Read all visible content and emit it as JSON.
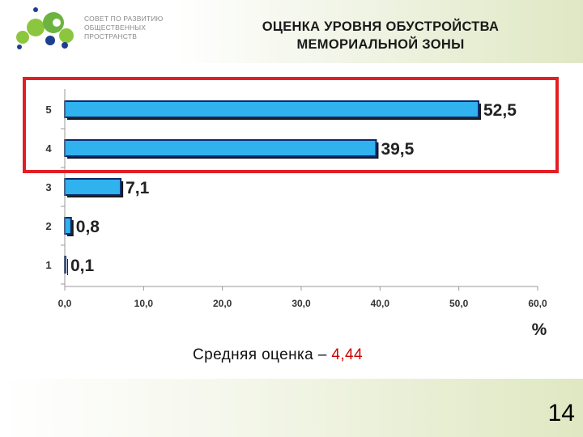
{
  "logo": {
    "text_lines": [
      "СОВЕТ ПО РАЗВИТИЮ",
      "ОБЩЕСТВЕННЫХ",
      "ПРОСТРАНСТВ"
    ]
  },
  "slide": {
    "title_line1": "ОЦЕНКА УРОВНЯ ОБУСТРОЙСТВА",
    "title_line2": "МЕМОРИАЛЬНОЙ ЗОНЫ",
    "average_label": "Средняя оценка – ",
    "average_value": "4,44",
    "page_number": "14"
  },
  "colors": {
    "bar_fill": "#2fb2ee",
    "bar_stroke": "#0a2a6e",
    "highlight_box": "#e31e24",
    "average_value": "#cc0000"
  },
  "chart_data": {
    "type": "bar",
    "orientation": "horizontal",
    "categories": [
      "1",
      "2",
      "3",
      "4",
      "5"
    ],
    "values": [
      0.1,
      0.8,
      7.1,
      39.5,
      52.5
    ],
    "value_labels": [
      "0,1",
      "0,8",
      "7,1",
      "39,5",
      "52,5"
    ],
    "xlim": [
      0,
      60
    ],
    "x_ticks": [
      "0,0",
      "10,0",
      "20,0",
      "30,0",
      "40,0",
      "50,0",
      "60,0"
    ],
    "xlabel": "%",
    "highlighted_categories": [
      "4",
      "5"
    ],
    "grid": false
  }
}
